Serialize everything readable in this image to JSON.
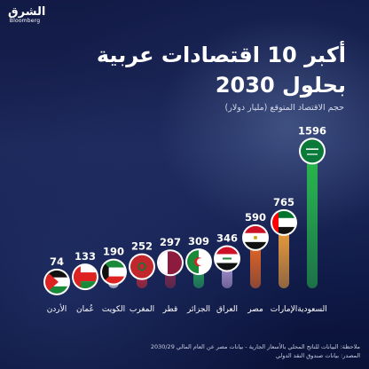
{
  "brand": {
    "logo_text": "الشرق",
    "logo_sub": "Bloomberg"
  },
  "header": {
    "title_line1": "أكبر 10 اقتصادات عربية",
    "title_line2": "بحلول 2030",
    "subtitle": "حجم الاقتصاد المتوقع (مليار دولار)"
  },
  "chart_data": {
    "type": "bar",
    "title": "أكبر 10 اقتصادات عربية بحلول 2030",
    "ylabel": "حجم الاقتصاد المتوقع (مليار دولار)",
    "categories": [
      "الأردن",
      "عُمان",
      "الكويت",
      "المغرب",
      "قطر",
      "الجزائر",
      "العراق",
      "مصر",
      "الإمارات",
      "السعودية"
    ],
    "values": [
      74,
      133,
      190,
      252,
      297,
      309,
      346,
      590,
      765,
      1596
    ],
    "bar_colors": [
      "#e23a3a",
      "#a23030",
      "#f2f2f2",
      "#c72a3a",
      "#8d2a4a",
      "#25a85a",
      "#b59ad8",
      "#f06a22",
      "#f4a23a",
      "#27b84a"
    ],
    "flags": [
      "jordan-flag",
      "oman-flag",
      "kuwait-flag",
      "morocco-flag",
      "qatar-flag",
      "algeria-flag",
      "iraq-flag",
      "egypt-flag",
      "uae-flag",
      "saudi-flag"
    ],
    "ylim": [
      0,
      1600
    ]
  },
  "footer": {
    "note": "ملاحظة: البيانات للناتج المحلي بالأسعار الجارية - بيانات مصر عن العام المالي 2030/29",
    "source": "المصدر: بيانات صندوق النقد الدولي"
  }
}
